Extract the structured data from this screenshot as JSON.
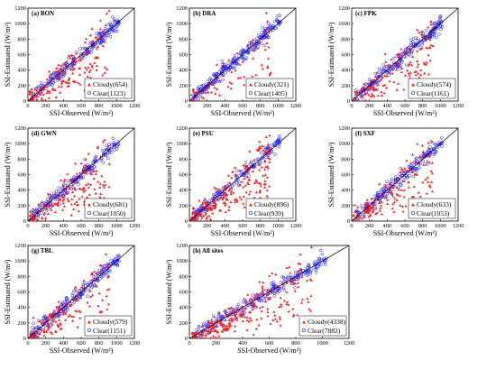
{
  "xlabel": "SSI-Observed (W/m²)",
  "ylabel": "SSI-Estimated  (W/m²)",
  "colors": {
    "cloudy": "#ff1a1a",
    "clear": "#1a1aff",
    "line": "#000000"
  },
  "chart_data": [
    {
      "type": "scatter",
      "title": "(a) BON",
      "xlim": [
        0,
        1200
      ],
      "ylim": [
        0,
        1200
      ],
      "xticks": [
        0,
        200,
        400,
        600,
        800,
        1000,
        1200
      ],
      "yticks": [
        0,
        200,
        400,
        600,
        800,
        1000,
        1200
      ],
      "reference_line": "1:1",
      "legend_position": "bottom-right",
      "series": [
        {
          "name": "Cloudy",
          "count": "654",
          "marker": "triangle"
        },
        {
          "name": "Clear",
          "count": "1123",
          "marker": "circle"
        }
      ],
      "legend": [
        "Cloudy(654)",
        "Clear(1123)"
      ]
    },
    {
      "type": "scatter",
      "title": "(b) DRA",
      "xlim": [
        0,
        1200
      ],
      "ylim": [
        0,
        1200
      ],
      "xticks": [
        0,
        200,
        400,
        600,
        800,
        1000,
        1200
      ],
      "yticks": [
        0,
        200,
        400,
        600,
        800,
        1000,
        1200
      ],
      "reference_line": "1:1",
      "legend_position": "bottom-right",
      "series": [
        {
          "name": "Cloudy",
          "count": "321",
          "marker": "triangle"
        },
        {
          "name": "Clear",
          "count": "1405",
          "marker": "circle"
        }
      ],
      "legend": [
        "Cloudy(321)",
        "Clear(1405)"
      ]
    },
    {
      "type": "scatter",
      "title": "(c) FPK",
      "xlim": [
        0,
        1200
      ],
      "ylim": [
        0,
        1200
      ],
      "xticks": [
        0,
        200,
        400,
        600,
        800,
        1000,
        1200
      ],
      "yticks": [
        0,
        200,
        400,
        600,
        800,
        1000,
        1200
      ],
      "reference_line": "1:1",
      "legend_position": "bottom-right",
      "series": [
        {
          "name": "Cloudy",
          "count": "574",
          "marker": "triangle"
        },
        {
          "name": "Clear",
          "count": "1161",
          "marker": "circle"
        }
      ],
      "legend": [
        "Cloudy(574)",
        "Clear(1161)"
      ]
    },
    {
      "type": "scatter",
      "title": "(d) GWN",
      "xlim": [
        0,
        1200
      ],
      "ylim": [
        0,
        1200
      ],
      "xticks": [
        0,
        200,
        400,
        600,
        800,
        1000,
        1200
      ],
      "yticks": [
        0,
        200,
        400,
        600,
        800,
        1000,
        1200
      ],
      "reference_line": "1:1",
      "legend_position": "bottom-right",
      "series": [
        {
          "name": "Cloudy",
          "count": "681",
          "marker": "triangle"
        },
        {
          "name": "Clear",
          "count": "1050",
          "marker": "circle"
        }
      ],
      "legend": [
        "Cloudy(681)",
        "Clear(1050)"
      ]
    },
    {
      "type": "scatter",
      "title": "(e) PSU",
      "xlim": [
        0,
        1200
      ],
      "ylim": [
        0,
        1200
      ],
      "xticks": [
        0,
        200,
        400,
        600,
        800,
        1000,
        1200
      ],
      "yticks": [
        0,
        200,
        400,
        600,
        800,
        1000,
        1200
      ],
      "reference_line": "1:1",
      "legend_position": "bottom-right",
      "series": [
        {
          "name": "Cloudy",
          "count": "896",
          "marker": "triangle"
        },
        {
          "name": "Clear",
          "count": "939",
          "marker": "circle"
        }
      ],
      "legend": [
        "Cloudy(896)",
        "Clear(939)"
      ]
    },
    {
      "type": "scatter",
      "title": "(f) SXF",
      "xlim": [
        0,
        1200
      ],
      "ylim": [
        0,
        1200
      ],
      "xticks": [
        0,
        200,
        400,
        600,
        800,
        1000,
        1200
      ],
      "yticks": [
        0,
        200,
        400,
        600,
        800,
        1000,
        1200
      ],
      "reference_line": "1:1",
      "legend_position": "bottom-right",
      "series": [
        {
          "name": "Cloudy",
          "count": "633",
          "marker": "triangle"
        },
        {
          "name": "Clear",
          "count": "1053",
          "marker": "circle"
        }
      ],
      "legend": [
        "Cloudy(633)",
        "Clear(1053)"
      ]
    },
    {
      "type": "scatter",
      "title": "(g) TBL",
      "xlim": [
        0,
        1200
      ],
      "ylim": [
        0,
        1200
      ],
      "xticks": [
        0,
        200,
        400,
        600,
        800,
        1000,
        1200
      ],
      "yticks": [
        0,
        200,
        400,
        600,
        800,
        1000,
        1200
      ],
      "reference_line": "1:1",
      "legend_position": "bottom-right",
      "series": [
        {
          "name": "Cloudy",
          "count": "579",
          "marker": "triangle"
        },
        {
          "name": "Clear",
          "count": "1151",
          "marker": "circle"
        }
      ],
      "legend": [
        "Cloudy(579)",
        "Clear(1151)"
      ]
    },
    {
      "type": "scatter",
      "title": "(h) All sites",
      "xlim": [
        0,
        1200
      ],
      "ylim": [
        0,
        1200
      ],
      "xticks": [
        0,
        200,
        400,
        600,
        800,
        1000,
        1200
      ],
      "yticks": [
        0,
        200,
        400,
        600,
        800,
        1000,
        1200
      ],
      "reference_line": "1:1",
      "legend_position": "bottom-right",
      "series": [
        {
          "name": "Cloudy",
          "count": "4338",
          "marker": "triangle"
        },
        {
          "name": "Clear",
          "count": "7882",
          "marker": "circle"
        }
      ],
      "legend": [
        "Cloudy(4338)",
        "Clear(7882)"
      ]
    }
  ]
}
